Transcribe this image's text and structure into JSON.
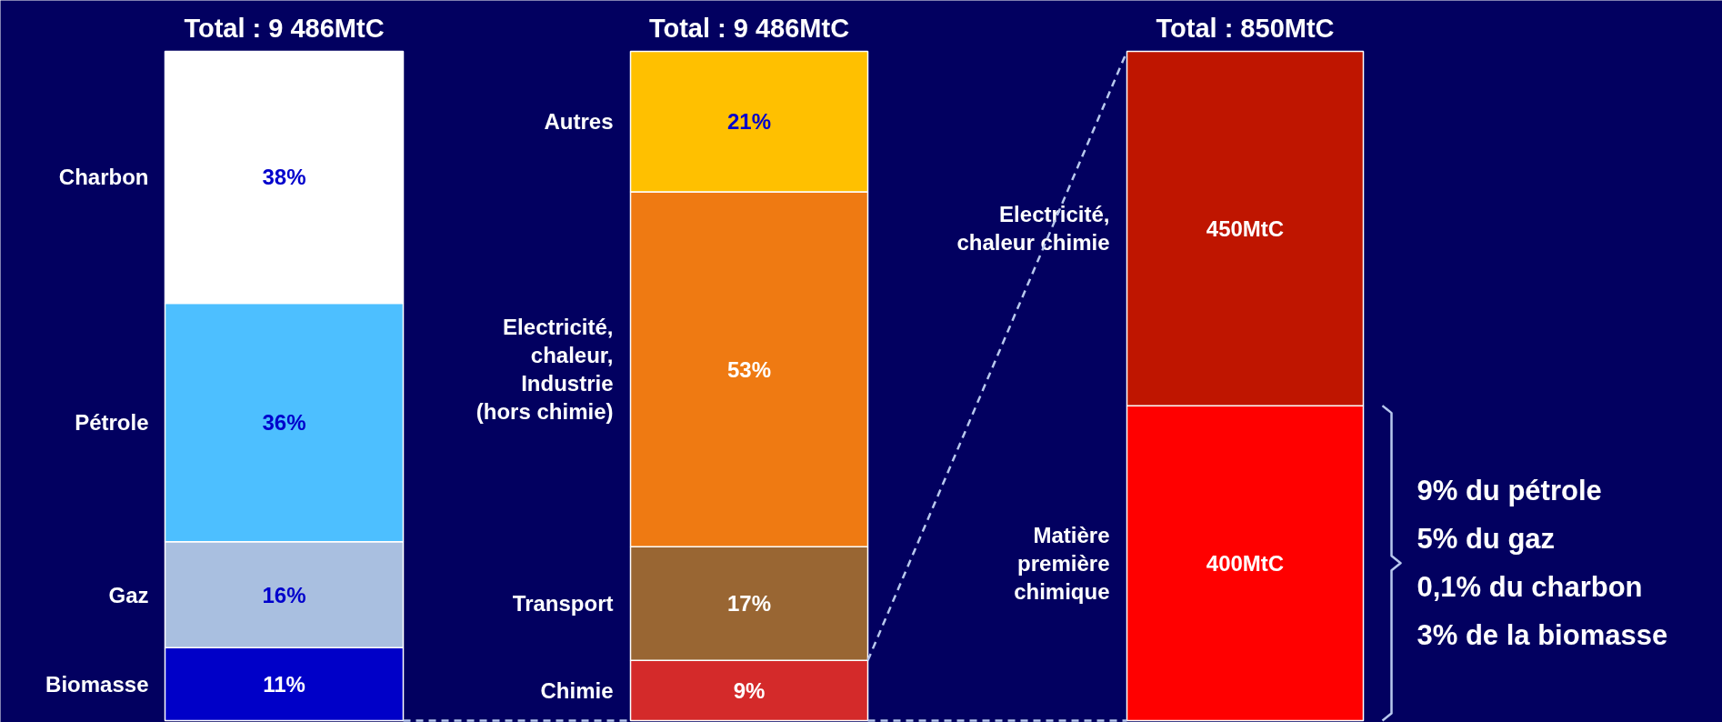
{
  "chart_data": [
    {
      "type": "bar",
      "stacked": true,
      "title": "Total : 9 486MtC",
      "categories": [
        null
      ],
      "series": [
        {
          "name": "Biomasse",
          "color": "#0000c8",
          "values": [
            11
          ],
          "value_labels": [
            "11%"
          ]
        },
        {
          "name": "Gaz",
          "color": "#a9bfe0",
          "values": [
            16
          ],
          "value_labels": [
            "16%"
          ]
        },
        {
          "name": "Pétrole",
          "color": "#4dbfff",
          "values": [
            36
          ],
          "value_labels": [
            "36%"
          ]
        },
        {
          "name": "Charbon",
          "color": "#ffffff",
          "values": [
            38
          ],
          "value_labels": [
            "38%"
          ]
        }
      ]
    },
    {
      "type": "bar",
      "stacked": true,
      "title": "Total : 9 486MtC",
      "categories": [
        null
      ],
      "series": [
        {
          "name": "Chimie",
          "color": "#d42a2a",
          "values": [
            9
          ],
          "value_labels": [
            "9%"
          ]
        },
        {
          "name": "Transport",
          "color": "#996633",
          "values": [
            17
          ],
          "value_labels": [
            "17%"
          ]
        },
        {
          "name": "Electricité,\nchaleur,\nIndustrie\n(hors chimie)",
          "color": "#ef7a12",
          "values": [
            53
          ],
          "value_labels": [
            "53%"
          ]
        },
        {
          "name": "Autres",
          "color": "#ffc000",
          "values": [
            21
          ],
          "value_labels": [
            "21%"
          ]
        }
      ]
    },
    {
      "type": "bar",
      "stacked": true,
      "title": "Total : 850MtC",
      "categories": [
        null
      ],
      "series": [
        {
          "name": "Matière\npremière\nchimique",
          "color": "#ff0000",
          "values": [
            400
          ],
          "value_labels": [
            "400MtC"
          ]
        },
        {
          "name": "Electricité,\nchaleur chimie",
          "color": "#bf1500",
          "values": [
            450
          ],
          "value_labels": [
            "450MtC"
          ]
        }
      ],
      "annotations": [
        "9% du pétrole",
        "5% du gaz",
        "0,1% du charbon",
        "3% de la biomasse"
      ]
    }
  ]
}
